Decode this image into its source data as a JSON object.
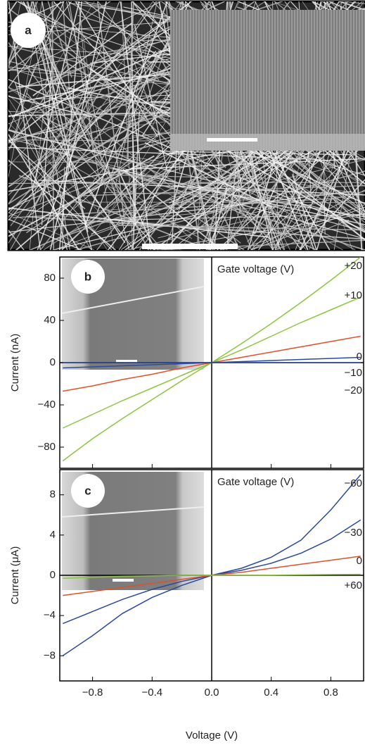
{
  "panel_a": {
    "label": "a"
  },
  "chart_data": [
    {
      "type": "line",
      "label": "b",
      "ylabel": "Current (nA)",
      "annotation": "Gate voltage (V)",
      "x": [
        -1,
        -0.8,
        -0.6,
        -0.4,
        -0.2,
        0,
        0.2,
        0.4,
        0.6,
        0.8,
        1
      ],
      "xlim": [
        -1.02,
        1.02
      ],
      "ylim": [
        -100,
        100
      ],
      "xticks": [
        {
          "value": -0.8,
          "label": "−0.8"
        },
        {
          "value": -0.4,
          "label": "−0.4"
        },
        {
          "value": 0,
          "label": "0.0"
        },
        {
          "value": 0.4,
          "label": "0.4"
        },
        {
          "value": 0.8,
          "label": "0.8"
        }
      ],
      "yticks": [
        {
          "value": -80,
          "label": "−80"
        },
        {
          "value": -40,
          "label": "−40"
        },
        0,
        40,
        80
      ],
      "series": [
        {
          "name": "+20",
          "color": "#8cc63f",
          "values": [
            -93,
            -72,
            -53,
            -35,
            -17,
            0,
            18,
            37,
            57,
            78,
            100
          ]
        },
        {
          "name": "+10",
          "color": "#8cc63f",
          "values": [
            -62,
            -49,
            -36,
            -24,
            -12,
            0,
            12,
            25,
            38,
            50,
            62
          ]
        },
        {
          "name": "0",
          "color": "#e0502a",
          "values": [
            -27,
            -22,
            -16,
            -11,
            -5,
            0,
            5,
            10,
            15,
            20,
            25
          ]
        },
        {
          "name": "−10",
          "color": "#2b4a9b",
          "values": [
            -5,
            -4,
            -3,
            -2,
            -1,
            0,
            1,
            2,
            3,
            4,
            5
          ]
        },
        {
          "name": "−20",
          "color": "#2b4a9b",
          "values": [
            0,
            0,
            0,
            0,
            0,
            0,
            0,
            0,
            0,
            0,
            0
          ]
        }
      ]
    },
    {
      "type": "line",
      "label": "c",
      "xlabel": "Voltage (V)",
      "ylabel": "Current (μA)",
      "annotation": "Gate voltage (V)",
      "x": [
        -1,
        -0.8,
        -0.6,
        -0.4,
        -0.2,
        0,
        0.2,
        0.4,
        0.6,
        0.8,
        1
      ],
      "xlim": [
        -1.02,
        1.02
      ],
      "ylim": [
        -10.5,
        10.5
      ],
      "xticks": [
        {
          "value": -0.8,
          "label": "−0.8"
        },
        {
          "value": -0.4,
          "label": "−0.4"
        },
        {
          "value": 0,
          "label": "0.0"
        },
        {
          "value": 0.4,
          "label": "0.4"
        },
        {
          "value": 0.8,
          "label": "0.8"
        }
      ],
      "yticks": [
        {
          "value": -8,
          "label": "−8"
        },
        {
          "value": -4,
          "label": "−4"
        },
        0,
        4,
        8
      ],
      "series": [
        {
          "name": "−60",
          "color": "#2b4a9b",
          "values": [
            -8,
            -6,
            -3.8,
            -2.2,
            -1,
            0,
            0.7,
            1.8,
            3.5,
            6.5,
            10
          ]
        },
        {
          "name": "−30",
          "color": "#2b4a9b",
          "values": [
            -4.8,
            -3.6,
            -2.4,
            -1.4,
            -0.6,
            0,
            0.5,
            1.2,
            2.2,
            3.6,
            5.5
          ]
        },
        {
          "name": "0",
          "color": "#e0502a",
          "values": [
            -2,
            -1.6,
            -1.2,
            -0.8,
            -0.4,
            0,
            0.3,
            0.7,
            1.1,
            1.5,
            1.9
          ]
        },
        {
          "name": "+60",
          "color": "#8cc63f",
          "values": [
            -0.3,
            -0.2,
            -0.1,
            -0.05,
            0,
            0,
            0,
            0.02,
            0.05,
            0.08,
            0.1
          ]
        }
      ]
    }
  ]
}
